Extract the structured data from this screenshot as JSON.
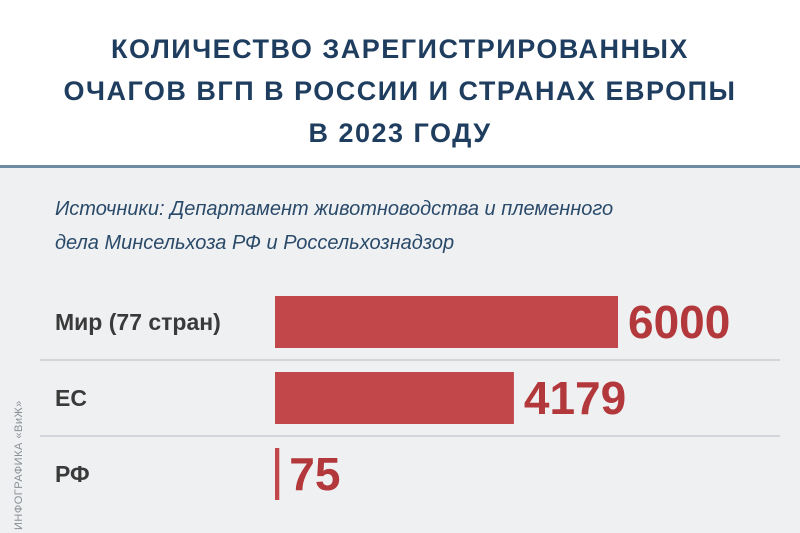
{
  "chart_data": {
    "type": "bar",
    "orientation": "horizontal",
    "title": [
      "КОЛИЧЕСТВО ЗАРЕГИСТРИРОВАННЫХ",
      "ОЧАГОВ ВГП В РОССИИ И СТРАНАХ ЕВРОПЫ",
      "В 2023 ГОДУ"
    ],
    "subtitle": [
      "Источники: Департамент животноводства и племенного",
      "дела Минсельхоза РФ и Россельхознадзор"
    ],
    "categories": [
      "Мир (77 стран)",
      "ЕС",
      "РФ"
    ],
    "values": [
      6000,
      4179,
      75
    ],
    "color": "#c1474a",
    "credit": "ИНФОГРАФИКА «ВиЖ»"
  }
}
